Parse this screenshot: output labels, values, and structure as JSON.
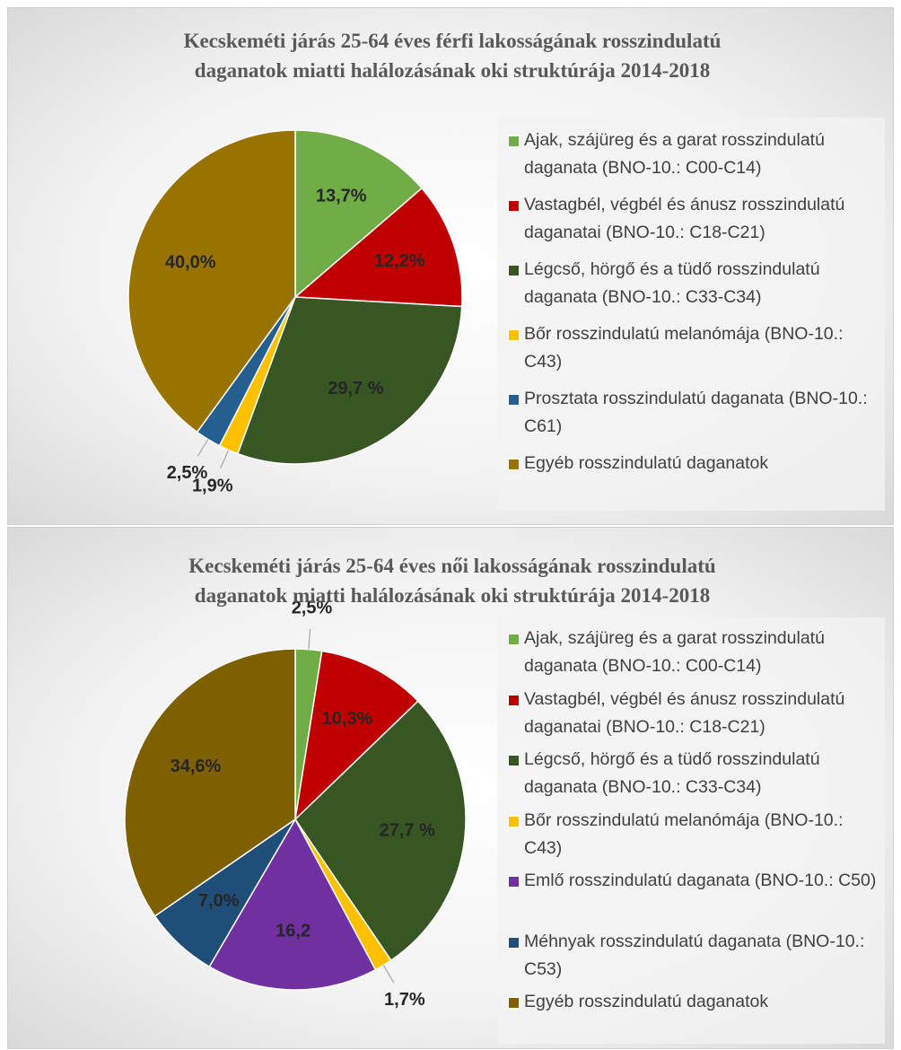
{
  "chart_data": [
    {
      "type": "pie",
      "title": "Kecskeméti járás 25-64 éves férfi lakosságának rosszindulatú daganatok miatti halálozásának oki struktúrája 2014-2018",
      "categories": [
        "Ajak, szájüreg és a garat rosszindulatú daganata (BNO-10.: C00-C14)",
        "Vastagbél, végbél és ánusz rosszindulatú daganatai (BNO-10.: C18-C21)",
        "Légcső, hörgő és a tüdő rosszindulatú daganata (BNO-10.: C33-C34)",
        "Bőr rosszindulatú melanómája (BNO-10.: C43)",
        "Prosztata rosszindulatú daganata (BNO-10.: C61)",
        "Egyéb rosszindulatú daganatok"
      ],
      "values": [
        13.7,
        12.2,
        29.7,
        1.9,
        2.5,
        40.0
      ],
      "value_labels": [
        "13,7%",
        "12,2%",
        "29,7 %",
        "1,9%",
        "2,5%",
        "40,0%"
      ],
      "colors": [
        "#70ad47",
        "#c00000",
        "#375623",
        "#ffc000",
        "#255e91",
        "#997300"
      ]
    },
    {
      "type": "pie",
      "title": "Kecskeméti járás 25-64 éves női lakosságának rosszindulatú daganatok miatti halálozásának oki struktúrája 2014-2018",
      "categories": [
        "Ajak, szájüreg és a garat rosszindulatú daganata (BNO-10.: C00-C14)",
        "Vastagbél, végbél és ánusz rosszindulatú daganatai (BNO-10.: C18-C21)",
        "Légcső, hörgő és a tüdő rosszindulatú daganata (BNO-10.: C33-C34)",
        "Bőr rosszindulatú melanómája (BNO-10.: C43)",
        "Emlő rosszindulatú daganata (BNO-10.: C50)",
        "Méhnyak rosszindulatú daganata (BNO-10.: C53)",
        "Egyéb rosszindulatú daganatok"
      ],
      "values": [
        2.5,
        10.3,
        27.7,
        1.7,
        16.2,
        7.0,
        34.6
      ],
      "value_labels": [
        "2,5%",
        "10,3%",
        "27,7 %",
        "1,7%",
        "16,2",
        "7,0%",
        "34,6%"
      ],
      "colors": [
        "#70ad47",
        "#c00000",
        "#375623",
        "#ffc000",
        "#7030a0",
        "#1f4e79",
        "#7f6000"
      ]
    }
  ]
}
